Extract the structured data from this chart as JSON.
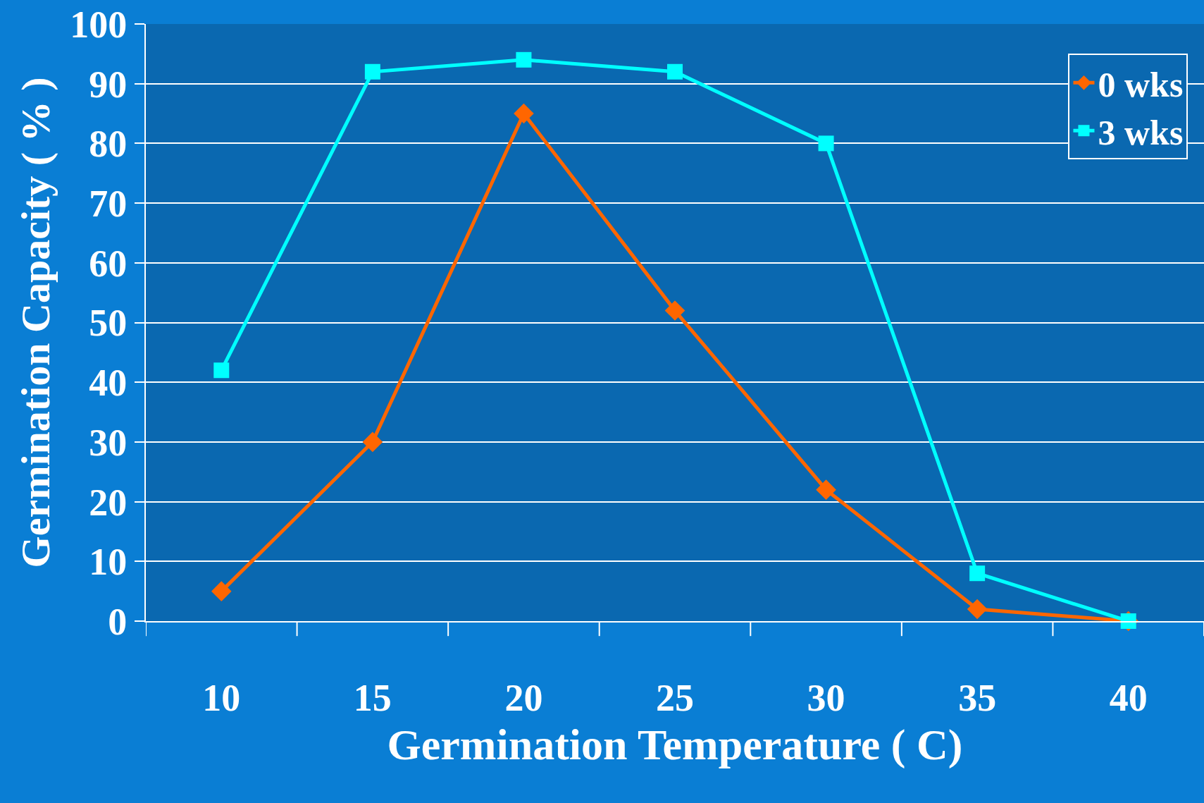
{
  "chart_data": {
    "type": "line",
    "xlabel": "Germination Temperature ( C)",
    "ylabel": "Germination Capacity ( % )",
    "categories": [
      "10",
      "15",
      "20",
      "25",
      "30",
      "35",
      "40"
    ],
    "series": [
      {
        "name": "0 wks",
        "color": "#ff6600",
        "marker": "diamond",
        "values": [
          5,
          30,
          85,
          52,
          22,
          2,
          0
        ]
      },
      {
        "name": "3 wks",
        "color": "#00ffff",
        "marker": "square",
        "values": [
          42,
          92,
          94,
          92,
          80,
          8,
          0
        ]
      }
    ],
    "ylim": [
      0,
      100
    ],
    "yticks": [
      0,
      10,
      20,
      30,
      40,
      50,
      60,
      70,
      80,
      90,
      100
    ],
    "grid": "y",
    "legend": "top right",
    "line_style": "solid"
  }
}
